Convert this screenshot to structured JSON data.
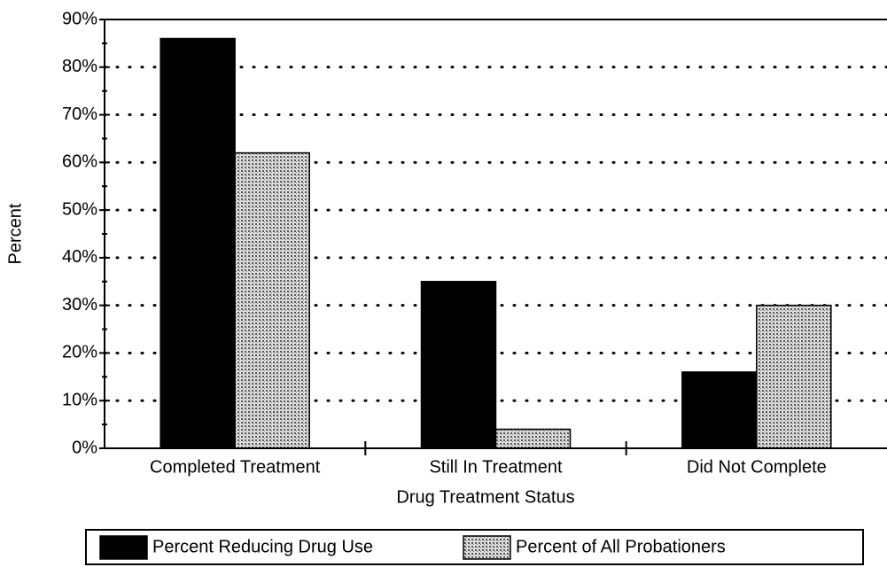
{
  "chart_data": {
    "type": "bar",
    "categories": [
      "Completed Treatment",
      "Still In Treatment",
      "Did Not Complete"
    ],
    "series": [
      {
        "name": "Percent Reducing Drug Use",
        "color": "#000000",
        "values": [
          86,
          35,
          16
        ]
      },
      {
        "name": "Percent of All Probationers",
        "color": "#b8b8b8",
        "values": [
          62,
          4,
          30
        ]
      }
    ],
    "xlabel": "Drug Treatment Status",
    "ylabel": "Percent",
    "ylim": [
      0,
      90
    ],
    "yticks": [
      {
        "value": 0,
        "label": "0%"
      },
      {
        "value": 10,
        "label": "10%"
      },
      {
        "value": 20,
        "label": "20%"
      },
      {
        "value": 30,
        "label": "30%"
      },
      {
        "value": 40,
        "label": "40%"
      },
      {
        "value": 50,
        "label": "50%"
      },
      {
        "value": 60,
        "label": "60%"
      },
      {
        "value": 70,
        "label": "70%"
      },
      {
        "value": 80,
        "label": "80%"
      },
      {
        "value": 90,
        "label": "90%"
      }
    ],
    "grid": true,
    "legend": "bottom"
  }
}
